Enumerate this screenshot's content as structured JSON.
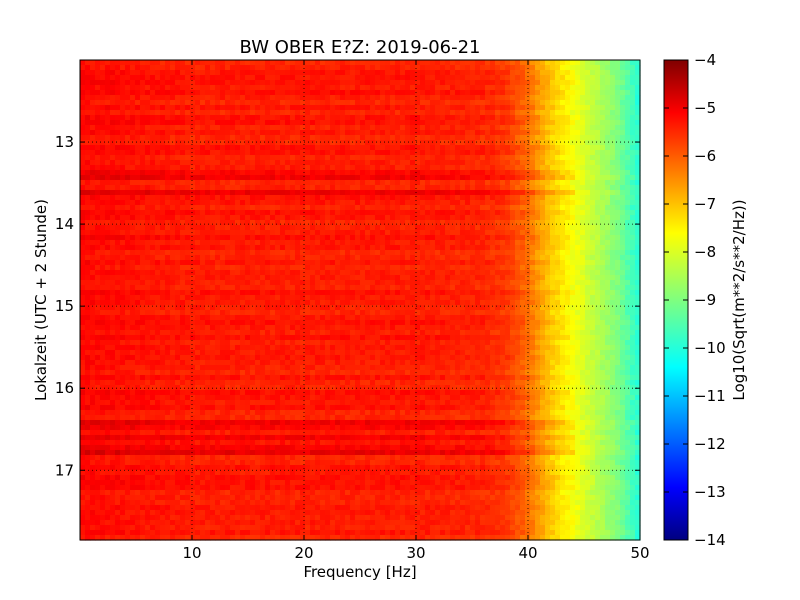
{
  "chart_data": {
    "type": "heatmap",
    "title": "BW OBER E?Z: 2019-06-21",
    "xlabel": "Frequency [Hz]",
    "ylabel": "Lokalzeit (UTC + 2 Stunde)",
    "xlim": [
      0,
      50
    ],
    "ylim": [
      17.85,
      12.0
    ],
    "x_ticks": [
      10,
      20,
      30,
      40,
      50
    ],
    "y_ticks": [
      13,
      14,
      15,
      16,
      17
    ],
    "grid": true,
    "colormap": "jet",
    "colorbar": {
      "label": "Log10(Sqrt(m**2/s**2/Hz))",
      "range": [
        -14,
        -4
      ],
      "ticks": [
        -4,
        -5,
        -6,
        -7,
        -8,
        -9,
        -10,
        -11,
        -12,
        -13,
        -14
      ]
    },
    "spectrum_profile": {
      "frequency_hz": [
        0,
        5,
        10,
        20,
        30,
        36,
        38,
        40,
        42,
        44,
        46,
        48,
        50
      ],
      "log10_amplitude": [
        -5.3,
        -5.4,
        -5.5,
        -5.5,
        -5.5,
        -5.6,
        -5.75,
        -6.3,
        -7.2,
        -7.8,
        -8.4,
        -9.0,
        -9.9
      ]
    },
    "strong_band_times_hours": [
      13.4,
      13.6,
      16.45,
      16.6,
      16.75
    ]
  }
}
